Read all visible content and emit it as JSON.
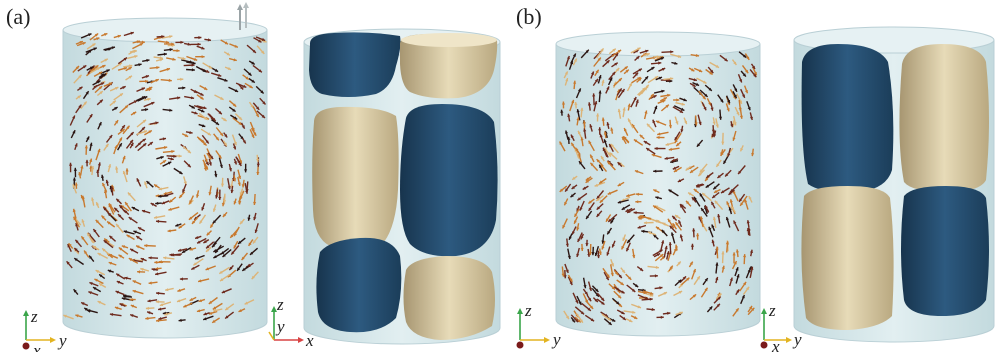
{
  "panels": [
    {
      "label": "(a)",
      "arrow_view_axes": {
        "vertical": "z",
        "horizontal": "y",
        "out_of_plane": "x"
      },
      "isosurface_view_axes": {
        "vertical": "z",
        "depth": "y",
        "horizontal": "x"
      },
      "isosurface_blocks": [
        {
          "column": "left",
          "row": 1,
          "color": "blue"
        },
        {
          "column": "right",
          "row": 1,
          "color": "tan"
        },
        {
          "column": "left",
          "row": 2,
          "color": "tan"
        },
        {
          "column": "right",
          "row": 2,
          "color": "blue"
        },
        {
          "column": "left",
          "row": 3,
          "color": "blue"
        },
        {
          "column": "right",
          "row": 3,
          "color": "tan"
        }
      ]
    },
    {
      "label": "(b)",
      "arrow_view_axes": {
        "vertical": "z",
        "horizontal": "y",
        "out_of_plane": "x"
      },
      "isosurface_view_axes": {
        "vertical": "z",
        "horizontal": "y",
        "out_of_plane": "x"
      },
      "isosurface_blocks": [
        {
          "column": "left",
          "row": 1,
          "color": "blue"
        },
        {
          "column": "right",
          "row": 1,
          "color": "tan"
        },
        {
          "column": "left",
          "row": 2,
          "color": "tan"
        },
        {
          "column": "right",
          "row": 2,
          "color": "blue"
        }
      ]
    }
  ],
  "colors": {
    "cylinder_fill": "#d3e6ea",
    "cylinder_edge": "#b9cfd5",
    "blue_surface": "#234c6e",
    "tan_surface": "#d3c49c",
    "arrow_dark": "#2a1512",
    "arrow_maroon": "#6e2a1d",
    "arrow_orange": "#c8792e",
    "arrow_light": "#ddb477",
    "axis_z": "#3aa54a",
    "axis_y": "#e3b420",
    "axis_x": "#d84444",
    "axis_dot": "#7a1a1a"
  }
}
